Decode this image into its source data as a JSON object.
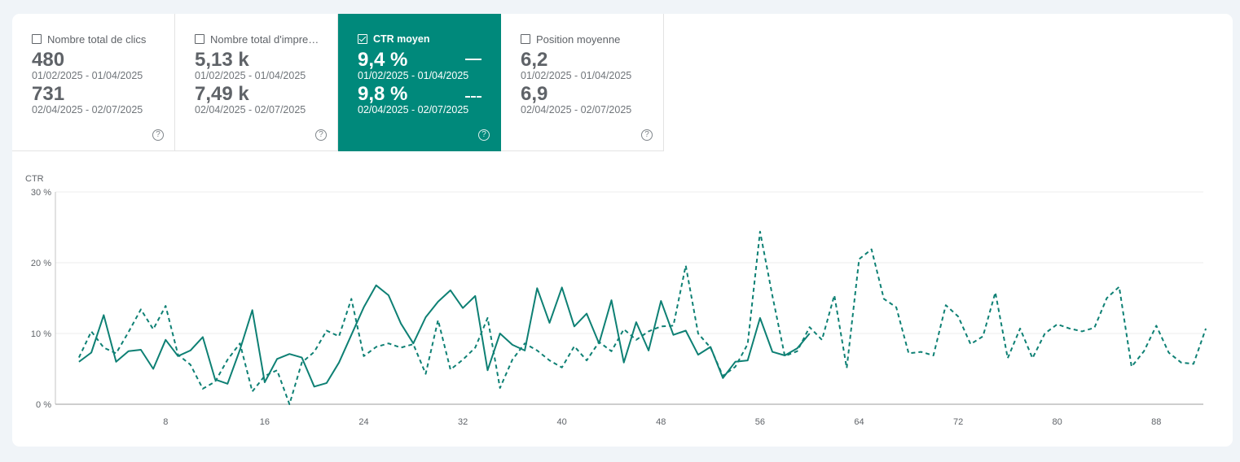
{
  "metrics": [
    {
      "label": "Nombre total de clics",
      "value1": "480",
      "range1": "01/02/2025 - 01/04/2025",
      "value2": "731",
      "range2": "02/04/2025 - 02/07/2025",
      "checked": false
    },
    {
      "label": "Nombre total d'impre…",
      "value1": "5,13 k",
      "range1": "01/02/2025 - 01/04/2025",
      "value2": "7,49 k",
      "range2": "02/04/2025 - 02/07/2025",
      "checked": false
    },
    {
      "label": "CTR moyen",
      "value1": "9,4 %",
      "range1": "01/02/2025 - 01/04/2025",
      "value2": "9,8 %",
      "range2": "02/04/2025 - 02/07/2025",
      "checked": true
    },
    {
      "label": "Position moyenne",
      "value1": "6,2",
      "range1": "01/02/2025 - 01/04/2025",
      "value2": "6,9",
      "range2": "02/04/2025 - 02/07/2025",
      "checked": false
    }
  ],
  "help_glyph": "?",
  "colors": {
    "accent": "#00897b",
    "line": "#0e8074",
    "grid": "#ececec"
  },
  "chart_data": {
    "type": "line",
    "ylabel": "CTR",
    "ylim": [
      0,
      30
    ],
    "yticks": [
      "0 %",
      "10 %",
      "20 %",
      "30 %"
    ],
    "yticks_values": [
      0,
      10,
      20,
      30
    ],
    "xlim": [
      0,
      92
    ],
    "xticks": [
      8,
      16,
      24,
      32,
      40,
      48,
      56,
      64,
      72,
      80,
      88
    ],
    "series": [
      {
        "style": "solid",
        "x": [
          1,
          2,
          3,
          4,
          5,
          6,
          7,
          8,
          9,
          10,
          11,
          12,
          13,
          14,
          15,
          16,
          17,
          18,
          19,
          20,
          21,
          22,
          23,
          24,
          25,
          26,
          27,
          28,
          29,
          30,
          31,
          32,
          33,
          34,
          35,
          36,
          37,
          38,
          39,
          40,
          41,
          42,
          43,
          44,
          45,
          46,
          47,
          48,
          49,
          50,
          51,
          52,
          53,
          54,
          55,
          56,
          57,
          58,
          59,
          60
        ],
        "values": [
          6.0,
          7.3,
          12.6,
          6.0,
          7.5,
          7.7,
          5.0,
          9.1,
          6.8,
          7.6,
          9.5,
          3.5,
          2.9,
          7.7,
          13.3,
          3.1,
          6.4,
          7.1,
          6.6,
          2.5,
          3.0,
          5.9,
          9.8,
          13.7,
          16.8,
          15.4,
          11.4,
          8.6,
          12.3,
          14.5,
          16.1,
          13.6,
          15.3,
          4.8,
          10.0,
          8.4,
          7.6,
          16.4,
          11.5,
          16.5,
          11.0,
          12.8,
          8.6,
          14.7,
          5.9,
          11.6,
          7.6,
          14.6,
          9.8,
          10.4,
          7.0,
          8.1,
          3.7,
          6.0,
          6.2,
          12.2,
          7.4,
          6.9,
          7.9,
          10.0
        ]
      },
      {
        "style": "dashed",
        "x": [
          1,
          2,
          3,
          4,
          5,
          6,
          7,
          8,
          9,
          10,
          11,
          12,
          13,
          14,
          15,
          16,
          17,
          18,
          19,
          20,
          21,
          22,
          23,
          24,
          25,
          26,
          27,
          28,
          29,
          30,
          31,
          32,
          33,
          34,
          35,
          36,
          37,
          38,
          39,
          40,
          41,
          42,
          43,
          44,
          45,
          46,
          47,
          48,
          49,
          50,
          51,
          52,
          53,
          54,
          55,
          56,
          57,
          58,
          59,
          60,
          61,
          62,
          63,
          64,
          65,
          66,
          67,
          68,
          69,
          70,
          71,
          72,
          73,
          74,
          75,
          76,
          77,
          78,
          79,
          80,
          81,
          82,
          83,
          84,
          85,
          86,
          87,
          88,
          89,
          90,
          91,
          92
        ],
        "values": [
          6.6,
          10.3,
          8.0,
          7.2,
          10.2,
          13.4,
          10.6,
          13.9,
          7.0,
          5.6,
          2.2,
          3.2,
          6.3,
          8.6,
          1.8,
          4.0,
          4.8,
          0.0,
          5.9,
          7.4,
          10.4,
          9.6,
          14.9,
          6.8,
          8.1,
          8.6,
          8.0,
          8.5,
          4.3,
          11.9,
          4.9,
          6.3,
          8.0,
          12.2,
          2.3,
          6.3,
          8.6,
          7.6,
          6.2,
          5.2,
          8.2,
          6.2,
          8.8,
          7.5,
          10.6,
          9.1,
          10.3,
          11.0,
          11.1,
          19.6,
          10.0,
          8.0,
          4.0,
          5.3,
          8.5,
          24.4,
          15.3,
          6.8,
          7.5,
          10.9,
          9.1,
          15.4,
          5.1,
          20.5,
          21.9,
          14.9,
          13.7,
          7.2,
          7.4,
          6.9,
          14.0,
          12.4,
          8.5,
          9.6,
          15.8,
          6.5,
          10.7,
          6.5,
          10.0,
          11.3,
          10.7,
          10.3,
          10.8,
          15.0,
          16.6,
          5.3,
          7.5,
          11.1,
          7.3,
          5.9,
          5.7,
          10.7
        ]
      }
    ],
    "grid": true,
    "legend": "card-markers"
  }
}
